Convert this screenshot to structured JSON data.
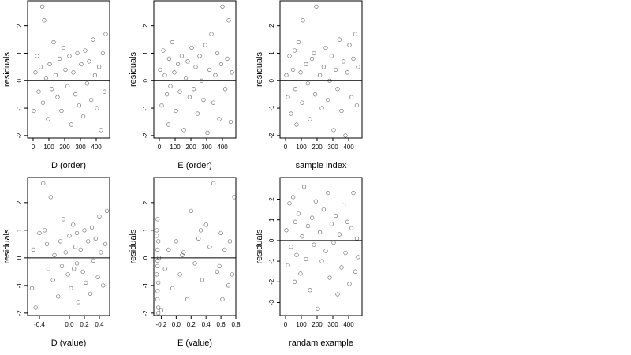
{
  "chart_data": [
    {
      "type": "scatter",
      "x_label": "D (order)",
      "y_label": "residuals",
      "hline": 0,
      "xlim": [
        -35,
        485
      ],
      "ylim": [
        -2.09,
        2.91
      ],
      "xticks": [
        0,
        100,
        200,
        300,
        400
      ],
      "yticks": [
        -2,
        -1,
        0,
        1,
        2
      ],
      "x": [
        5,
        15,
        25,
        35,
        48,
        58,
        62,
        70,
        82,
        95,
        105,
        118,
        130,
        142,
        155,
        168,
        180,
        192,
        205,
        218,
        230,
        242,
        255,
        268,
        280,
        292,
        305,
        318,
        330,
        342,
        355,
        368,
        380,
        392,
        405,
        418,
        430,
        442,
        452,
        460
      ],
      "y": [
        -1.1,
        0.3,
        0.9,
        -0.4,
        0.5,
        2.7,
        -0.8,
        2.2,
        0.1,
        -1.4,
        0.6,
        -0.3,
        1.4,
        0.2,
        -0.6,
        0.8,
        -1.1,
        1.2,
        0.4,
        -0.2,
        0.9,
        -1.6,
        0.3,
        -0.5,
        1.0,
        -0.9,
        0.6,
        -1.3,
        1.1,
        -0.1,
        0.7,
        -0.7,
        1.5,
        0.2,
        -1.0,
        0.5,
        -1.8,
        1.0,
        -0.4,
        1.7
      ]
    },
    {
      "type": "scatter",
      "x_label": "E (order)",
      "y_label": "residuals",
      "hline": 0,
      "xlim": [
        -35,
        485
      ],
      "ylim": [
        -2.09,
        2.91
      ],
      "xticks": [
        0,
        100,
        200,
        300,
        400
      ],
      "yticks": [
        -2,
        -1,
        0,
        1,
        2
      ],
      "x": [
        5,
        15,
        25,
        35,
        48,
        58,
        62,
        70,
        82,
        95,
        105,
        118,
        130,
        142,
        155,
        168,
        180,
        192,
        205,
        218,
        230,
        242,
        255,
        268,
        280,
        292,
        305,
        318,
        330,
        342,
        355,
        368,
        380,
        392,
        400,
        418,
        430,
        440,
        452,
        460
      ],
      "y": [
        0.4,
        -0.9,
        1.1,
        0.2,
        -0.5,
        -1.6,
        0.8,
        -0.2,
        1.4,
        0.3,
        -1.1,
        0.6,
        -0.4,
        0.9,
        -1.8,
        0.1,
        0.7,
        -0.6,
        1.2,
        -0.3,
        0.5,
        -1.2,
        0.9,
        0.0,
        -0.7,
        1.3,
        -1.9,
        0.4,
        1.7,
        -0.8,
        0.2,
        1.0,
        -1.4,
        0.6,
        2.7,
        -0.3,
        0.8,
        2.2,
        -1.5,
        0.3
      ]
    },
    {
      "type": "scatter",
      "x_label": "sample index",
      "y_label": "residuals",
      "hline": 0,
      "xlim": [
        -35,
        485
      ],
      "ylim": [
        -2.09,
        2.91
      ],
      "xticks": [
        0,
        100,
        200,
        300,
        400
      ],
      "yticks": [
        -2,
        -1,
        0,
        1,
        2
      ],
      "x": [
        5,
        15,
        25,
        35,
        48,
        58,
        62,
        70,
        82,
        95,
        105,
        110,
        130,
        142,
        155,
        168,
        180,
        188,
        195,
        218,
        230,
        242,
        255,
        268,
        280,
        292,
        305,
        318,
        330,
        342,
        355,
        368,
        380,
        392,
        405,
        418,
        430,
        442,
        452,
        460
      ],
      "y": [
        0.2,
        -0.6,
        0.9,
        -1.2,
        0.4,
        1.1,
        -0.3,
        -1.6,
        1.4,
        0.3,
        -0.8,
        2.2,
        0.6,
        -0.1,
        -1.4,
        0.8,
        1.0,
        -0.5,
        2.7,
        0.2,
        -1.0,
        0.5,
        1.2,
        -0.7,
        0.0,
        0.9,
        -1.8,
        0.4,
        -0.3,
        1.5,
        -1.1,
        0.7,
        -2.0,
        0.3,
        1.3,
        -0.6,
        0.8,
        1.7,
        -0.9,
        0.5
      ]
    },
    {
      "type": "scatter",
      "x_label": "D (value)",
      "y_label": "residuals",
      "hline": 0,
      "xlim": [
        -0.558,
        0.537
      ],
      "ylim": [
        -2.09,
        2.91
      ],
      "xticks": [
        {
          "value": -0.4,
          "label": "-0.4"
        },
        {
          "value": 0,
          "label": "0.0"
        },
        {
          "value": 0.2,
          "label": "0.2"
        },
        {
          "value": 0.4,
          "label": "0.4"
        }
      ],
      "yticks": [
        -2,
        -1,
        0,
        1,
        2
      ],
      "x": [
        -0.5,
        -0.48,
        -0.4,
        -0.35,
        -0.3,
        -0.28,
        -0.25,
        -0.22,
        -0.2,
        -0.15,
        -0.12,
        -0.1,
        -0.08,
        -0.05,
        -0.02,
        0.0,
        0.02,
        0.05,
        0.08,
        0.1,
        0.1,
        0.12,
        0.15,
        0.18,
        0.2,
        0.22,
        0.25,
        0.28,
        0.3,
        0.32,
        0.35,
        0.38,
        0.4,
        0.42,
        0.45,
        0.48,
        0.5,
        -0.45,
        -0.33,
        0.06
      ],
      "y": [
        -1.1,
        0.3,
        0.9,
        2.7,
        0.5,
        -0.4,
        2.2,
        -0.8,
        0.1,
        -1.4,
        0.6,
        -0.3,
        1.4,
        0.2,
        -0.6,
        0.8,
        -1.1,
        1.2,
        0.4,
        -0.2,
        0.9,
        -1.6,
        0.3,
        -0.5,
        1.0,
        -0.9,
        0.6,
        -1.3,
        1.1,
        -0.1,
        0.7,
        -0.7,
        1.5,
        0.2,
        -1.0,
        0.5,
        1.7,
        -1.8,
        1.0,
        -0.4
      ]
    },
    {
      "type": "scatter",
      "x_label": "E (value)",
      "y_label": "residuals",
      "hline": 0,
      "xlim": [
        -0.3,
        0.8
      ],
      "ylim": [
        -2.09,
        2.91
      ],
      "xticks": [
        {
          "value": -0.2,
          "label": "-0.2"
        },
        {
          "value": 0,
          "label": "0.0"
        },
        {
          "value": 0.2,
          "label": "0.2"
        },
        {
          "value": 0.4,
          "label": "0.4"
        },
        {
          "value": 0.6,
          "label": "0.6"
        },
        {
          "value": 0.8,
          "label": "0.8"
        }
      ],
      "yticks": [
        -2,
        -1,
        0,
        1,
        2
      ],
      "x": [
        -0.25,
        -0.26,
        -0.24,
        -0.25,
        -0.23,
        -0.25,
        -0.26,
        -0.24,
        -0.25,
        -0.25,
        -0.24,
        -0.26,
        -0.25,
        -0.24,
        -0.15,
        -0.1,
        -0.05,
        0.0,
        0.05,
        0.1,
        0.15,
        0.2,
        0.25,
        0.3,
        0.35,
        0.4,
        0.45,
        0.5,
        0.55,
        0.6,
        0.62,
        0.65,
        0.7,
        0.72,
        0.75,
        0.78,
        -0.2,
        0.08,
        0.33,
        0.58
      ],
      "y": [
        1.4,
        1.0,
        0.6,
        0.3,
        0.0,
        -0.3,
        -0.6,
        -0.9,
        -1.2,
        -1.5,
        -1.8,
        0.8,
        -0.1,
        -2.0,
        -0.4,
        0.3,
        -1.1,
        0.6,
        -0.6,
        0.2,
        -1.5,
        1.7,
        -0.2,
        0.7,
        -0.8,
        1.2,
        0.4,
        2.7,
        -0.5,
        0.9,
        -1.5,
        0.3,
        -1.0,
        0.6,
        -0.6,
        2.2,
        -1.9,
        0.1,
        1.0,
        -0.3
      ]
    },
    {
      "type": "scatter",
      "x_label": "randam example",
      "y_label": "residuals",
      "hline": 0,
      "xlim": [
        -35,
        485
      ],
      "ylim": [
        -3.63,
        3.05
      ],
      "xticks": [
        0,
        100,
        200,
        300,
        400
      ],
      "yticks": [
        -3,
        -2,
        -1,
        0,
        1,
        2
      ],
      "x": [
        5,
        15,
        25,
        35,
        48,
        58,
        62,
        70,
        82,
        95,
        105,
        118,
        130,
        142,
        155,
        168,
        180,
        192,
        205,
        218,
        230,
        242,
        255,
        268,
        280,
        292,
        305,
        318,
        330,
        342,
        355,
        368,
        380,
        392,
        405,
        418,
        430,
        442,
        452,
        460
      ],
      "y": [
        0.5,
        -1.2,
        1.8,
        -0.3,
        2.1,
        -2.0,
        0.9,
        -0.7,
        1.3,
        -1.6,
        0.2,
        2.6,
        -0.9,
        0.7,
        -2.4,
        1.1,
        -0.2,
        1.9,
        -3.3,
        0.4,
        -1.0,
        1.5,
        -0.5,
        2.3,
        -1.8,
        0.8,
        -0.1,
        1.2,
        -2.6,
        0.3,
        -1.3,
        1.7,
        -0.6,
        0.9,
        -2.1,
        0.6,
        2.3,
        -1.5,
        0.1,
        -0.8
      ]
    }
  ]
}
